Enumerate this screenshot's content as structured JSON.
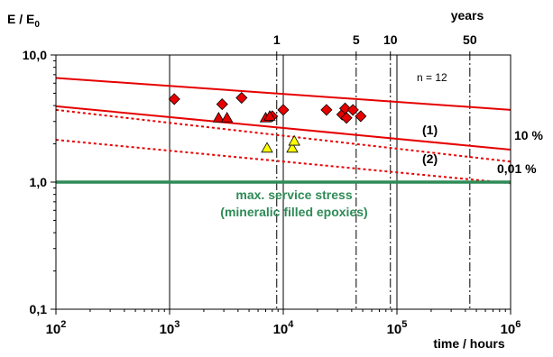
{
  "chart_data": {
    "type": "scatter",
    "title": "",
    "ylabel": "E / E",
    "ylabel_sub": "0",
    "xlabel": "time / hours",
    "x_scale": "log",
    "y_scale": "log",
    "xlim": [
      100,
      1000000
    ],
    "ylim": [
      0.1,
      10
    ],
    "grid": "vertical lines at decades",
    "x_ticks": [
      {
        "value": 100,
        "base": "10",
        "exp": "2"
      },
      {
        "value": 1000,
        "base": "10",
        "exp": "3"
      },
      {
        "value": 10000,
        "base": "10",
        "exp": "4"
      },
      {
        "value": 100000,
        "base": "10",
        "exp": "5"
      },
      {
        "value": 1000000,
        "base": "10",
        "exp": "6"
      }
    ],
    "y_ticks": [
      {
        "value": 10,
        "label": "10,0"
      },
      {
        "value": 1,
        "label": "1,0"
      },
      {
        "value": 0.1,
        "label": "0,1"
      }
    ],
    "time_axis": {
      "title": "years",
      "marks": [
        {
          "label": "1",
          "hours": 8760
        },
        {
          "label": "5",
          "hours": 43800
        },
        {
          "label": "10",
          "hours": 87600
        },
        {
          "label": "50",
          "hours": 438000
        }
      ]
    },
    "series": [
      {
        "marker": "diamond",
        "color": "#e60000",
        "points": [
          [
            1100,
            4.5
          ],
          [
            2900,
            4.1
          ],
          [
            4300,
            4.6
          ],
          [
            8000,
            3.3
          ],
          [
            10000,
            3.7
          ],
          [
            24000,
            3.7
          ],
          [
            33000,
            3.4
          ],
          [
            35000,
            3.8
          ],
          [
            36000,
            3.2
          ],
          [
            41000,
            3.7
          ],
          [
            48000,
            3.3
          ]
        ]
      },
      {
        "marker": "triangle",
        "color": "#e60000",
        "points": [
          [
            2700,
            3.2
          ],
          [
            3200,
            3.2
          ],
          [
            7000,
            3.2
          ],
          [
            7600,
            3.3
          ]
        ]
      },
      {
        "marker": "triangle",
        "color": "#ffff00",
        "points": [
          [
            7200,
            1.85
          ],
          [
            12000,
            1.85
          ],
          [
            12500,
            2.1
          ]
        ]
      }
    ],
    "lines": [
      {
        "style": "solid",
        "color": "#e60000",
        "x": [
          100,
          1000000
        ],
        "y": [
          6.6,
          3.7
        ]
      },
      {
        "style": "solid",
        "color": "#e60000",
        "x": [
          100,
          1000000
        ],
        "y": [
          3.95,
          1.8
        ]
      },
      {
        "style": "dotted",
        "color": "#e60000",
        "x": [
          100,
          1000000
        ],
        "y": [
          3.7,
          1.45
        ]
      },
      {
        "style": "dotted",
        "color": "#e60000",
        "x": [
          100,
          1000000
        ],
        "y": [
          2.15,
          0.98
        ]
      },
      {
        "style": "solid",
        "color": "#2e8b57",
        "x": [
          100,
          1000000
        ],
        "y": [
          1.0,
          1.0
        ]
      }
    ],
    "annotations": {
      "n": "n = 12",
      "curve1": "(1)",
      "curve2": "(2)",
      "pct10": "10 %",
      "pct001": "0,01 %",
      "stress_line1": "max. service stress",
      "stress_line2": "(mineralic filled epoxies)"
    },
    "colors": {
      "red": "#e60000",
      "yellow": "#ffff00",
      "green": "#2e8b57"
    }
  }
}
